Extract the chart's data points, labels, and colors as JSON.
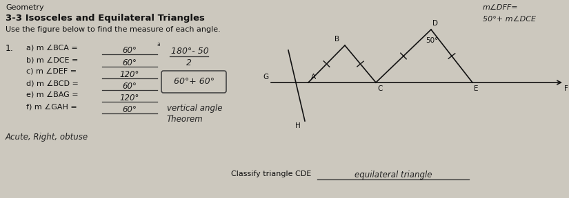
{
  "title_line1": "Geometry",
  "title_line2": "3-3 Isosceles and Equilateral Triangles",
  "instruction": "Use the figure below to find the measure of each angle.",
  "question_num": "1.",
  "answers": [
    {
      "label": "a) m ∠BCA =",
      "answer": "60°"
    },
    {
      "label": "b) m ∠DCE =",
      "answer": "60°"
    },
    {
      "label": "c) m ∠DEF =",
      "answer": "120°"
    },
    {
      "label": "d) m ∠BCD =",
      "answer": "60°"
    },
    {
      "label": "e) m ∠BAG =",
      "answer": "120°"
    },
    {
      "label": "f) m ∠GAH =",
      "answer": "60°"
    }
  ],
  "side_note1": "180°- 50",
  "side_note2": "2",
  "box_note": "60°+ 60°",
  "bottom_note1": "vertical angle",
  "bottom_note2": "Theorem",
  "classify_label": "Classify triangle CDE",
  "classify_answer": "equilateral triangle",
  "bottom_left": "Acute, Right, obtuse",
  "top_right_note1": "m∠DFF=",
  "top_right_note2": "50°+ m∠DCE",
  "angle_label": "50°",
  "bg_color": "#ccc8be",
  "text_color": "#111111",
  "fig_width": 8.25,
  "fig_height": 2.88,
  "dpi": 100
}
